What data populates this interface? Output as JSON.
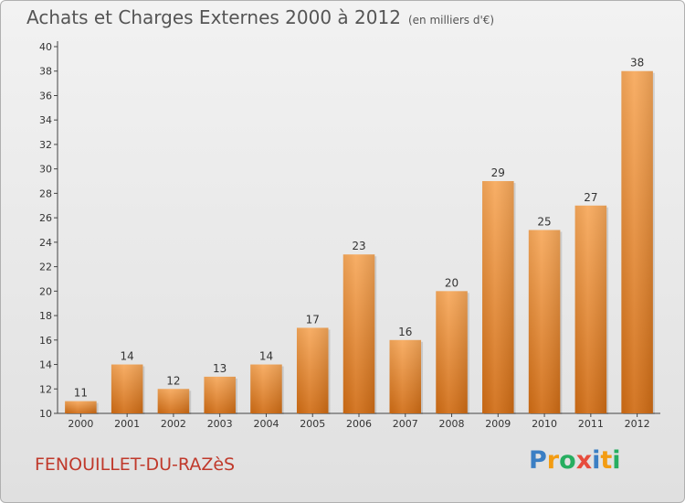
{
  "header": {
    "title": "Achats et Charges Externes 2000 à 2012",
    "subtitle": "(en milliers d'€)"
  },
  "footer": {
    "commune": "FENOUILLET-DU-RAZèS",
    "brand_letters": [
      "P",
      "r",
      "o",
      "x",
      "i",
      "t",
      "i"
    ],
    "brand_colors": [
      "#3b7fc4",
      "#f39c12",
      "#27ae60",
      "#e74c3c",
      "#3b7fc4",
      "#f39c12",
      "#27ae60"
    ]
  },
  "chart_data": {
    "type": "bar",
    "title": "Achats et Charges Externes 2000 à 2012",
    "subtitle": "(en milliers d'€)",
    "categories": [
      "2000",
      "2001",
      "2002",
      "2003",
      "2004",
      "2005",
      "2006",
      "2007",
      "2008",
      "2009",
      "2010",
      "2011",
      "2012"
    ],
    "values": [
      11,
      14,
      12,
      13,
      14,
      17,
      23,
      16,
      20,
      29,
      25,
      27,
      38
    ],
    "ylim": [
      10,
      40
    ],
    "yticks": [
      10,
      12,
      14,
      16,
      18,
      20,
      22,
      24,
      26,
      28,
      30,
      32,
      34,
      36,
      38,
      40
    ],
    "grid": false,
    "legend": "none",
    "colors": {
      "bar_top": "#f7a85a",
      "bar_bottom": "#d06c14",
      "axis": "#444444",
      "text": "#333333"
    }
  }
}
